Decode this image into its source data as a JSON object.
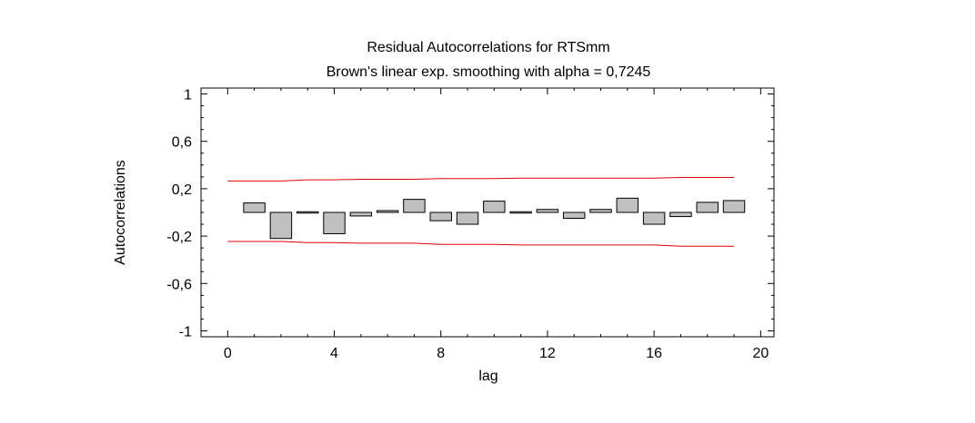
{
  "chart_data": {
    "type": "bar",
    "title": "Residual Autocorrelations for RTSmm",
    "subtitle": "Brown's linear exp. smoothing with alpha = 0,7245",
    "xlabel": "lag",
    "ylabel": "Autocorrelations",
    "xlim": [
      -1,
      20.5
    ],
    "ylim": [
      -1.05,
      1.05
    ],
    "x_ticks": [
      0,
      4,
      8,
      12,
      16,
      20
    ],
    "x_tick_labels": [
      "0",
      "4",
      "8",
      "12",
      "16",
      "20"
    ],
    "y_ticks": [
      1,
      0.6,
      0.2,
      -0.2,
      -0.6,
      -1
    ],
    "y_tick_labels": [
      "1",
      "0,6",
      "0,2",
      "-0,2",
      "-0,6",
      "-1"
    ],
    "lags": [
      1,
      2,
      3,
      4,
      5,
      6,
      7,
      8,
      9,
      10,
      11,
      12,
      13,
      14,
      15,
      16,
      17,
      18,
      19
    ],
    "values": [
      0.08,
      -0.22,
      -0.01,
      -0.18,
      -0.03,
      0.015,
      0.11,
      -0.07,
      -0.1,
      0.095,
      -0.005,
      0.025,
      -0.05,
      0.025,
      0.12,
      -0.1,
      -0.035,
      0.085,
      0.1
    ],
    "confidence_limits": {
      "x": [
        0,
        1,
        2,
        3,
        4,
        5,
        6,
        7,
        8,
        9,
        10,
        11,
        12,
        13,
        14,
        15,
        16,
        17,
        18,
        19
      ],
      "upper": [
        0.265,
        0.265,
        0.265,
        0.275,
        0.275,
        0.28,
        0.28,
        0.28,
        0.285,
        0.285,
        0.285,
        0.29,
        0.29,
        0.29,
        0.29,
        0.29,
        0.29,
        0.295,
        0.295,
        0.295
      ],
      "lower": [
        -0.245,
        -0.245,
        -0.245,
        -0.255,
        -0.255,
        -0.26,
        -0.26,
        -0.26,
        -0.27,
        -0.27,
        -0.27,
        -0.275,
        -0.275,
        -0.275,
        -0.275,
        -0.275,
        -0.275,
        -0.285,
        -0.285,
        -0.285
      ],
      "color": "#e00000"
    },
    "bar_color": "#c0c0c0",
    "bar_edge_color": "#000000",
    "grid": false,
    "legend": "none"
  }
}
